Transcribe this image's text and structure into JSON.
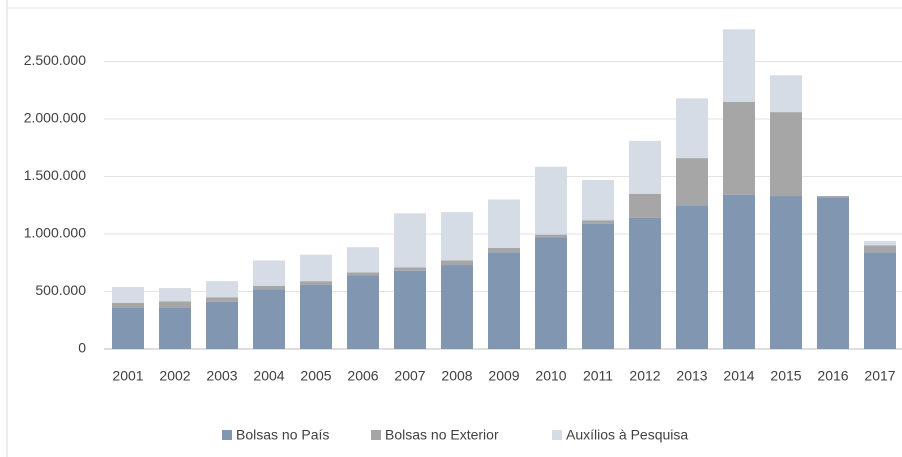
{
  "chart_data": {
    "type": "bar",
    "stacked": true,
    "categories": [
      "2001",
      "2002",
      "2003",
      "2004",
      "2005",
      "2006",
      "2007",
      "2008",
      "2009",
      "2010",
      "2011",
      "2012",
      "2013",
      "2014",
      "2015",
      "2016",
      "2017"
    ],
    "series": [
      {
        "name": "Bolsas no País",
        "color": "#8096b1",
        "values": [
          360000,
          360000,
          410000,
          520000,
          560000,
          640000,
          680000,
          730000,
          840000,
          970000,
          1090000,
          1140000,
          1250000,
          1340000,
          1330000,
          1320000,
          840000
        ]
      },
      {
        "name": "Bolsas no Exterior",
        "color": "#a6a6a6",
        "values": [
          40000,
          55000,
          40000,
          30000,
          30000,
          25000,
          30000,
          40000,
          40000,
          25000,
          30000,
          210000,
          410000,
          810000,
          730000,
          10000,
          60000
        ]
      },
      {
        "name": "Auxílios à Pesquisa",
        "color": "#d6dce5",
        "values": [
          140000,
          115000,
          140000,
          220000,
          230000,
          220000,
          470000,
          420000,
          420000,
          590000,
          350000,
          460000,
          520000,
          630000,
          320000,
          0,
          40000
        ]
      }
    ],
    "ylim": [
      0,
      3000000
    ],
    "yticks": [
      0,
      {
        "value": 500000,
        "label": "500.000"
      },
      {
        "value": 1000000,
        "label": "1.000.000"
      },
      {
        "value": 1500000,
        "label": "1.500.000"
      },
      {
        "value": 2000000,
        "label": "2.000.000"
      },
      {
        "value": 2500000,
        "label": "2.500.000"
      }
    ],
    "grid": true,
    "legend": "bottom"
  }
}
